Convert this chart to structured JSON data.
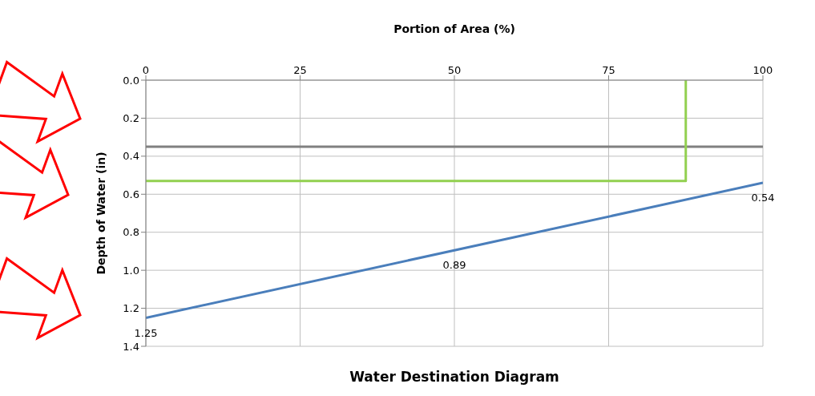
{
  "chart_data": {
    "type": "line",
    "title": "Water Destination Diagram",
    "xlabel": "Portion of Area (%)",
    "ylabel": "Depth of Water (in)",
    "xlim": [
      0,
      100
    ],
    "xticks": [
      0,
      25,
      50,
      75,
      100
    ],
    "ylim": [
      1.4,
      0
    ],
    "yticks": [
      {
        "value": 0,
        "label": "0.0"
      },
      {
        "value": 0.2,
        "label": "0.2"
      },
      {
        "value": 0.4,
        "label": "0.4"
      },
      {
        "value": 0.6,
        "label": "0.6"
      },
      {
        "value": 0.8,
        "label": "0.8"
      },
      {
        "value": 1.0,
        "label": "1.0"
      },
      {
        "value": 1.2,
        "label": "1.2"
      },
      {
        "value": 1.4,
        "label": "1.4"
      }
    ],
    "grid": true,
    "line_style": "solid",
    "marker": "none",
    "series": [
      {
        "color": "#4a7ebb",
        "x": [
          0,
          100
        ],
        "values": [
          1.25,
          0.54
        ]
      },
      {
        "color": "#92d050",
        "x": [
          0,
          87.5,
          87.5
        ],
        "values": [
          0.53,
          0.53,
          0
        ]
      }
    ],
    "ref_lines": [
      {
        "axis": "y",
        "value": 0.35,
        "color": "#808080"
      }
    ],
    "annotations": [
      {
        "text": "1.25",
        "x": 0,
        "y": 1.25
      },
      {
        "text": "0.89",
        "x": 50,
        "y": 0.895
      },
      {
        "text": "0.54",
        "x": 100,
        "y": 0.54
      }
    ]
  }
}
